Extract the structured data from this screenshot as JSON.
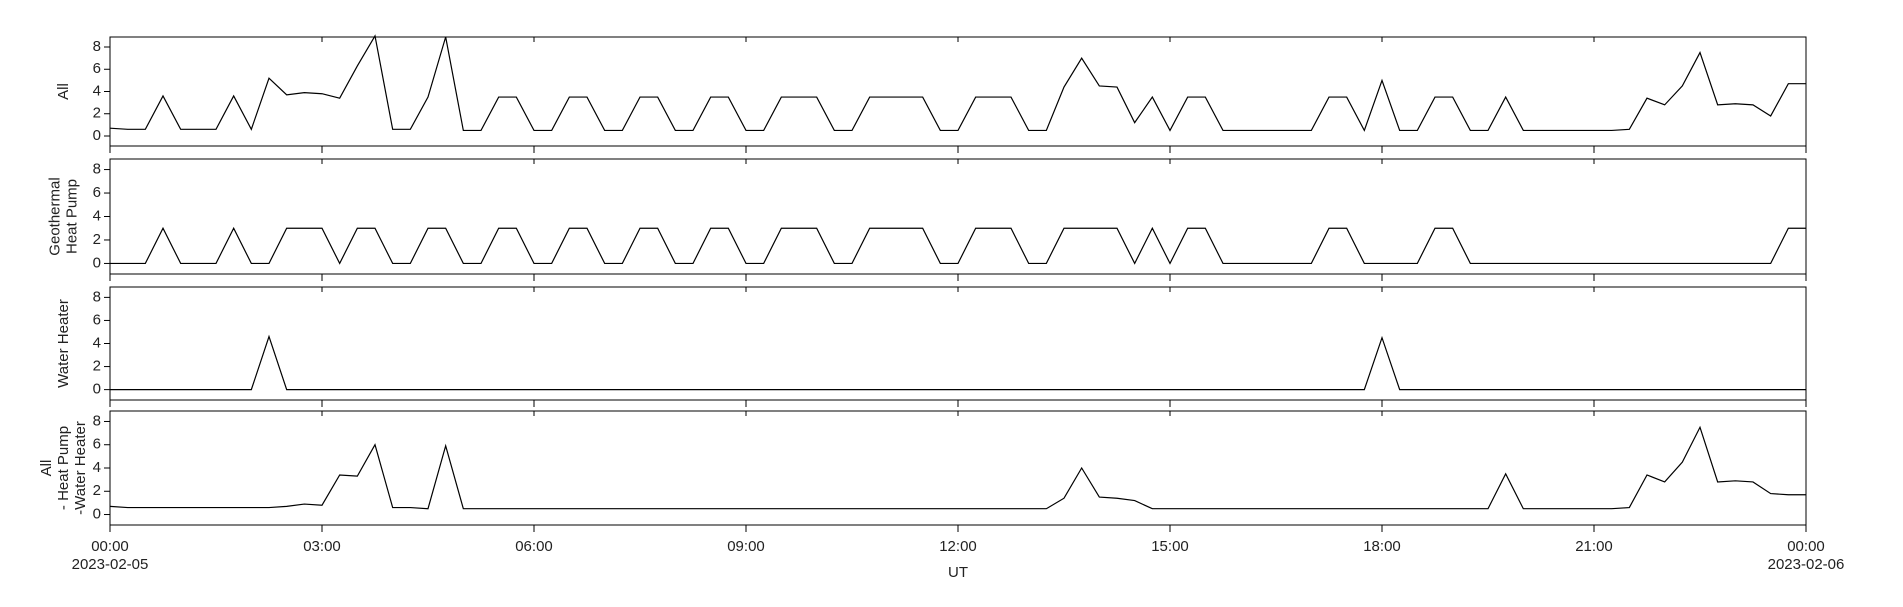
{
  "chart_data": [
    {
      "type": "line",
      "ylabel": [
        "All"
      ],
      "color": "#000000",
      "x": [
        0,
        0.25,
        0.5,
        0.75,
        1,
        1.25,
        1.5,
        1.75,
        2,
        2.25,
        2.5,
        2.75,
        3,
        3.25,
        3.5,
        3.75,
        4,
        4.25,
        4.5,
        4.75,
        5,
        5.25,
        5.5,
        5.75,
        6,
        6.25,
        6.5,
        6.75,
        7,
        7.25,
        7.5,
        7.75,
        8,
        8.25,
        8.5,
        8.75,
        9,
        9.25,
        9.5,
        9.75,
        10,
        10.25,
        10.5,
        10.75,
        11,
        11.25,
        11.5,
        11.75,
        12,
        12.25,
        12.5,
        12.75,
        13,
        13.25,
        13.5,
        13.75,
        14,
        14.25,
        14.5,
        14.75,
        15,
        15.25,
        15.5,
        15.75,
        16,
        16.25,
        16.5,
        16.75,
        17,
        17.25,
        17.5,
        17.75,
        18,
        18.25,
        18.5,
        18.75,
        19,
        19.25,
        19.5,
        19.75,
        20,
        20.25,
        20.5,
        20.75,
        21,
        21.25,
        21.5,
        21.75,
        22,
        22.25,
        22.5,
        22.75,
        23,
        23.25,
        23.5,
        23.75,
        24
      ],
      "values": [
        0.7,
        0.6,
        0.6,
        3.6,
        0.6,
        0.6,
        0.6,
        3.6,
        0.6,
        5.2,
        3.7,
        3.9,
        3.8,
        3.4,
        6.3,
        9.0,
        0.6,
        0.6,
        3.5,
        8.9,
        0.5,
        0.5,
        3.5,
        3.5,
        0.5,
        0.5,
        3.5,
        3.5,
        0.5,
        0.5,
        3.5,
        3.5,
        0.5,
        0.5,
        3.5,
        3.5,
        0.5,
        0.5,
        3.5,
        3.5,
        3.5,
        0.5,
        0.5,
        3.5,
        3.5,
        3.5,
        3.5,
        0.5,
        0.5,
        3.5,
        3.5,
        3.5,
        0.5,
        0.5,
        4.4,
        7.0,
        4.5,
        4.4,
        1.2,
        3.5,
        0.5,
        3.5,
        3.5,
        0.5,
        0.5,
        0.5,
        0.5,
        0.5,
        0.5,
        3.5,
        3.5,
        0.5,
        5.0,
        0.5,
        0.5,
        3.5,
        3.5,
        0.5,
        0.5,
        3.5,
        0.5,
        0.5,
        0.5,
        0.5,
        0.5,
        0.5,
        0.6,
        3.4,
        2.8,
        4.5,
        7.5,
        2.8,
        2.9,
        2.8,
        1.8,
        4.7,
        4.7
      ],
      "xlim": [
        0,
        24
      ],
      "ylim": [
        -0.9,
        8.9
      ],
      "yticks": [
        0,
        2,
        4,
        6,
        8
      ]
    },
    {
      "type": "line",
      "ylabel": [
        "Geothermal",
        "Heat Pump"
      ],
      "color": "#000000",
      "x": [
        0,
        0.25,
        0.5,
        0.75,
        1,
        1.25,
        1.5,
        1.75,
        2,
        2.25,
        2.5,
        2.75,
        3,
        3.25,
        3.5,
        3.75,
        4,
        4.25,
        4.5,
        4.75,
        5,
        5.25,
        5.5,
        5.75,
        6,
        6.25,
        6.5,
        6.75,
        7,
        7.25,
        7.5,
        7.75,
        8,
        8.25,
        8.5,
        8.75,
        9,
        9.25,
        9.5,
        9.75,
        10,
        10.25,
        10.5,
        10.75,
        11,
        11.25,
        11.5,
        11.75,
        12,
        12.25,
        12.5,
        12.75,
        13,
        13.25,
        13.5,
        13.75,
        14,
        14.25,
        14.5,
        14.75,
        15,
        15.25,
        15.5,
        15.75,
        16,
        16.25,
        16.5,
        16.75,
        17,
        17.25,
        17.5,
        17.75,
        18,
        18.25,
        18.5,
        18.75,
        19,
        19.25,
        19.5,
        19.75,
        20,
        20.25,
        20.5,
        20.75,
        21,
        21.25,
        21.5,
        21.75,
        22,
        22.25,
        22.5,
        22.75,
        23,
        23.25,
        23.5,
        23.75,
        24
      ],
      "values": [
        0,
        0,
        0,
        3,
        0,
        0,
        0,
        3,
        0,
        0,
        3,
        3,
        3,
        0,
        3,
        3,
        0,
        0,
        3,
        3,
        0,
        0,
        3,
        3,
        0,
        0,
        3,
        3,
        0,
        0,
        3,
        3,
        0,
        0,
        3,
        3,
        0,
        0,
        3,
        3,
        3,
        0,
        0,
        3,
        3,
        3,
        3,
        0,
        0,
        3,
        3,
        3,
        0,
        0,
        3,
        3,
        3,
        3,
        0,
        3,
        0,
        3,
        3,
        0,
        0,
        0,
        0,
        0,
        0,
        3,
        3,
        0,
        0,
        0,
        0,
        3,
        3,
        0,
        0,
        0,
        0,
        0,
        0,
        0,
        0,
        0,
        0,
        0,
        0,
        0,
        0,
        0,
        0,
        0,
        0,
        3,
        3
      ],
      "xlim": [
        0,
        24
      ],
      "ylim": [
        -0.9,
        8.9
      ],
      "yticks": [
        0,
        2,
        4,
        6,
        8
      ]
    },
    {
      "type": "line",
      "ylabel": [
        "Water Heater"
      ],
      "color": "#000000",
      "x": [
        0,
        0.25,
        0.5,
        0.75,
        1,
        1.25,
        1.5,
        1.75,
        2,
        2.25,
        2.5,
        2.75,
        3,
        3.25,
        3.5,
        3.75,
        4,
        4.25,
        4.5,
        4.75,
        5,
        5.25,
        5.5,
        5.75,
        6,
        6.25,
        6.5,
        6.75,
        7,
        7.25,
        7.5,
        7.75,
        8,
        8.25,
        8.5,
        8.75,
        9,
        9.25,
        9.5,
        9.75,
        10,
        10.25,
        10.5,
        10.75,
        11,
        11.25,
        11.5,
        11.75,
        12,
        12.25,
        12.5,
        12.75,
        13,
        13.25,
        13.5,
        13.75,
        14,
        14.25,
        14.5,
        14.75,
        15,
        15.25,
        15.5,
        15.75,
        16,
        16.25,
        16.5,
        16.75,
        17,
        17.25,
        17.5,
        17.75,
        18,
        18.25,
        18.5,
        18.75,
        19,
        19.25,
        19.5,
        19.75,
        20,
        20.25,
        20.5,
        20.75,
        21,
        21.25,
        21.5,
        21.75,
        22,
        22.25,
        22.5,
        22.75,
        23,
        23.25,
        23.5,
        23.75,
        24
      ],
      "values": [
        0,
        0,
        0,
        0,
        0,
        0,
        0,
        0,
        0,
        4.6,
        0,
        0,
        0,
        0,
        0,
        0,
        0,
        0,
        0,
        0,
        0,
        0,
        0,
        0,
        0,
        0,
        0,
        0,
        0,
        0,
        0,
        0,
        0,
        0,
        0,
        0,
        0,
        0,
        0,
        0,
        0,
        0,
        0,
        0,
        0,
        0,
        0,
        0,
        0,
        0,
        0,
        0,
        0,
        0,
        0,
        0,
        0,
        0,
        0,
        0,
        0,
        0,
        0,
        0,
        0,
        0,
        0,
        0,
        0,
        0,
        0,
        0,
        4.5,
        0,
        0,
        0,
        0,
        0,
        0,
        0,
        0,
        0,
        0,
        0,
        0,
        0,
        0,
        0,
        0,
        0,
        0,
        0,
        0,
        0,
        0,
        0,
        0
      ],
      "xlim": [
        0,
        24
      ],
      "ylim": [
        -0.9,
        8.9
      ],
      "yticks": [
        0,
        2,
        4,
        6,
        8
      ]
    },
    {
      "type": "line",
      "ylabel": [
        "All",
        "- Heat Pump",
        "-Water Heater"
      ],
      "color": "#000000",
      "x": [
        0,
        0.25,
        0.5,
        0.75,
        1,
        1.25,
        1.5,
        1.75,
        2,
        2.25,
        2.5,
        2.75,
        3,
        3.25,
        3.5,
        3.75,
        4,
        4.25,
        4.5,
        4.75,
        5,
        5.25,
        5.5,
        5.75,
        6,
        6.25,
        6.5,
        6.75,
        7,
        7.25,
        7.5,
        7.75,
        8,
        8.25,
        8.5,
        8.75,
        9,
        9.25,
        9.5,
        9.75,
        10,
        10.25,
        10.5,
        10.75,
        11,
        11.25,
        11.5,
        11.75,
        12,
        12.25,
        12.5,
        12.75,
        13,
        13.25,
        13.5,
        13.75,
        14,
        14.25,
        14.5,
        14.75,
        15,
        15.25,
        15.5,
        15.75,
        16,
        16.25,
        16.5,
        16.75,
        17,
        17.25,
        17.5,
        17.75,
        18,
        18.25,
        18.5,
        18.75,
        19,
        19.25,
        19.5,
        19.75,
        20,
        20.25,
        20.5,
        20.75,
        21,
        21.25,
        21.5,
        21.75,
        22,
        22.25,
        22.5,
        22.75,
        23,
        23.25,
        23.5,
        23.75,
        24
      ],
      "values": [
        0.7,
        0.6,
        0.6,
        0.6,
        0.6,
        0.6,
        0.6,
        0.6,
        0.6,
        0.6,
        0.7,
        0.9,
        0.8,
        3.4,
        3.3,
        6.0,
        0.6,
        0.6,
        0.5,
        5.9,
        0.5,
        0.5,
        0.5,
        0.5,
        0.5,
        0.5,
        0.5,
        0.5,
        0.5,
        0.5,
        0.5,
        0.5,
        0.5,
        0.5,
        0.5,
        0.5,
        0.5,
        0.5,
        0.5,
        0.5,
        0.5,
        0.5,
        0.5,
        0.5,
        0.5,
        0.5,
        0.5,
        0.5,
        0.5,
        0.5,
        0.5,
        0.5,
        0.5,
        0.5,
        1.4,
        4.0,
        1.5,
        1.4,
        1.2,
        0.5,
        0.5,
        0.5,
        0.5,
        0.5,
        0.5,
        0.5,
        0.5,
        0.5,
        0.5,
        0.5,
        0.5,
        0.5,
        0.5,
        0.5,
        0.5,
        0.5,
        0.5,
        0.5,
        0.5,
        3.5,
        0.5,
        0.5,
        0.5,
        0.5,
        0.5,
        0.5,
        0.6,
        3.4,
        2.8,
        4.5,
        7.5,
        2.8,
        2.9,
        2.8,
        1.8,
        1.7,
        1.7
      ],
      "xlim": [
        0,
        24
      ],
      "ylim": [
        -0.9,
        8.9
      ],
      "yticks": [
        0,
        2,
        4,
        6,
        8
      ],
      "xlabel": "UT",
      "xticks": [
        {
          "value": 0,
          "label": "00:00"
        },
        {
          "value": 3,
          "label": "03:00"
        },
        {
          "value": 6,
          "label": "06:00"
        },
        {
          "value": 9,
          "label": "09:00"
        },
        {
          "value": 12,
          "label": "12:00"
        },
        {
          "value": 15,
          "label": "15:00"
        },
        {
          "value": 18,
          "label": "18:00"
        },
        {
          "value": 21,
          "label": "21:00"
        },
        {
          "value": 24,
          "label": "00:00"
        }
      ],
      "date_labels": [
        {
          "value": 0,
          "label": "2023-02-05"
        },
        {
          "value": 24,
          "label": "2023-02-06"
        }
      ]
    }
  ]
}
